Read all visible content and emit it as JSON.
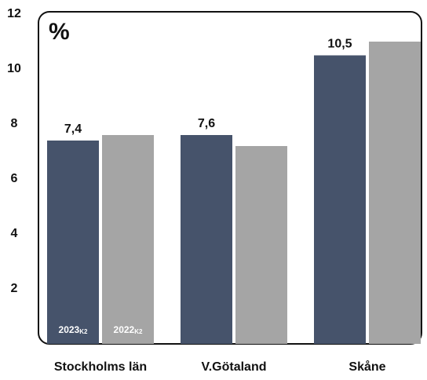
{
  "chart_data": {
    "type": "bar",
    "y_label": "%",
    "categories": [
      "Stockholms län",
      "V.Götaland",
      "Skåne"
    ],
    "series": [
      {
        "name": "2023",
        "name_subscript": "K2",
        "color": "#46536b",
        "values": [
          7.4,
          7.6,
          10.5
        ],
        "value_labels": [
          "7,4",
          "7,6",
          "10,5"
        ]
      },
      {
        "name": "2022",
        "name_subscript": "K2",
        "color": "#a5a5a5",
        "values": [
          7.6,
          7.2,
          11.0
        ]
      }
    ],
    "ylim": [
      0,
      12
    ],
    "yticks": [
      2,
      4,
      6,
      8,
      10,
      12
    ]
  }
}
